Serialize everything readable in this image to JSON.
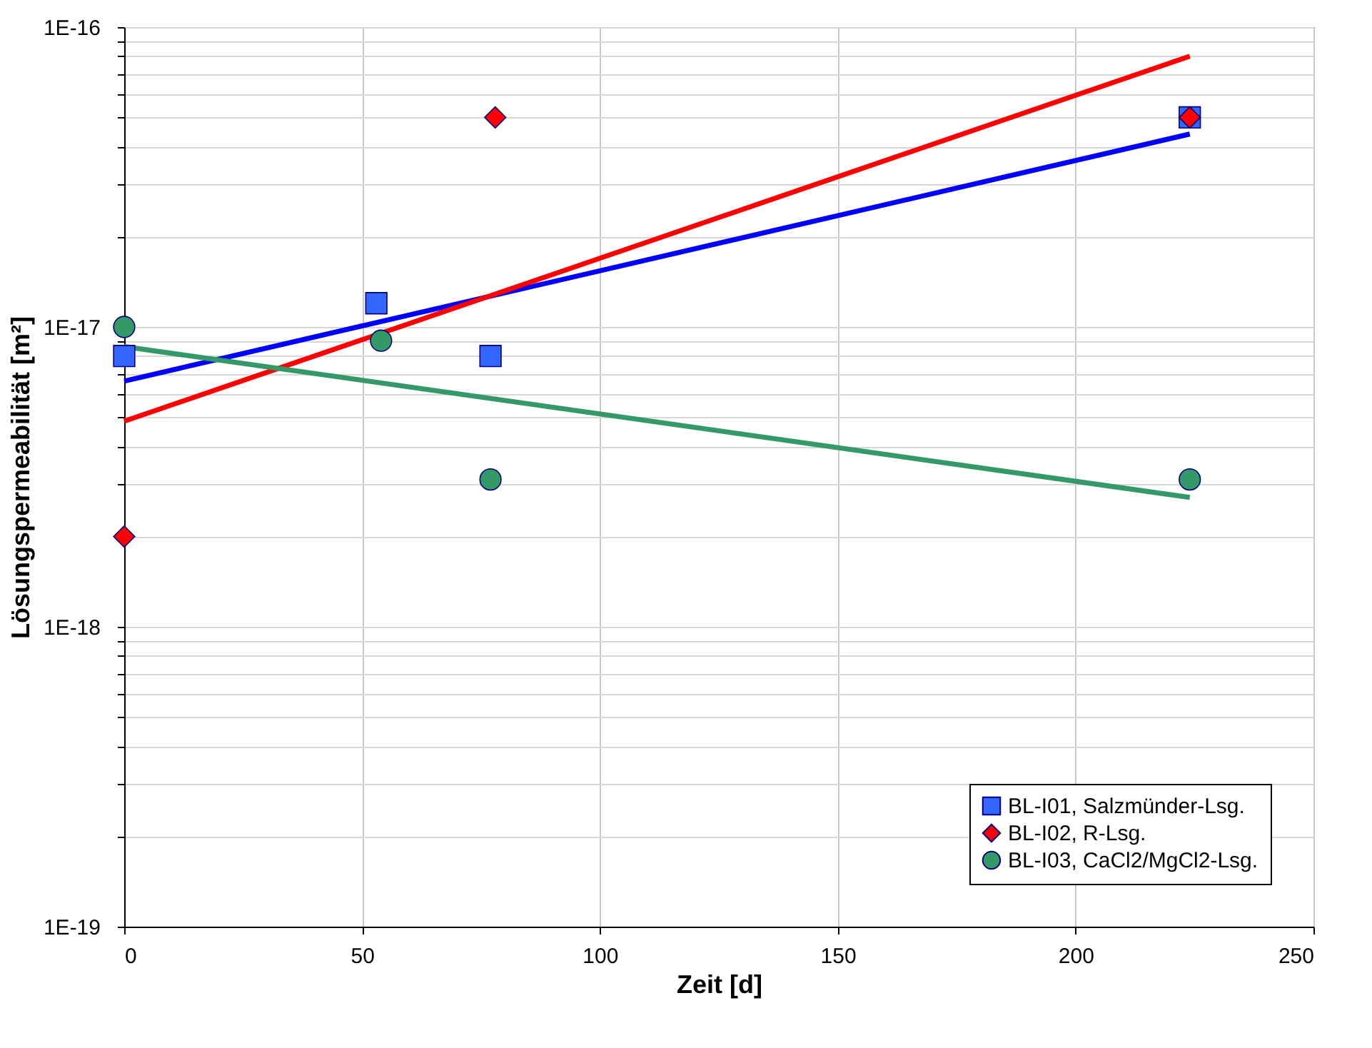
{
  "chart_data": {
    "type": "scatter",
    "xlabel": "Zeit [d]",
    "ylabel": "Lösungspermeabilität [m²]",
    "log": "y",
    "grid": true,
    "legend": "bottom right",
    "xlim": [
      0,
      250
    ],
    "xticks": [
      0,
      50,
      100,
      150,
      200,
      250
    ],
    "ylim": [
      1e-19,
      1e-16
    ],
    "yticks": [
      {
        "value": 1e-19,
        "label": "1E-19"
      },
      {
        "value": 2e-19,
        "label": null
      },
      {
        "value": 3e-19,
        "label": null
      },
      {
        "value": 4e-19,
        "label": null
      },
      {
        "value": 5e-19,
        "label": null
      },
      {
        "value": 6e-19,
        "label": null
      },
      {
        "value": 7e-19,
        "label": null
      },
      {
        "value": 8e-19,
        "label": null
      },
      {
        "value": 9e-19,
        "label": null
      },
      {
        "value": 1e-18,
        "label": "1E-18"
      },
      {
        "value": 2e-18,
        "label": null
      },
      {
        "value": 3e-18,
        "label": null
      },
      {
        "value": 4e-18,
        "label": null
      },
      {
        "value": 5e-18,
        "label": null
      },
      {
        "value": 6e-18,
        "label": null
      },
      {
        "value": 7e-18,
        "label": null
      },
      {
        "value": 8e-18,
        "label": null
      },
      {
        "value": 9e-18,
        "label": null
      },
      {
        "value": 1e-17,
        "label": "1E-17"
      },
      {
        "value": 2e-17,
        "label": null
      },
      {
        "value": 3e-17,
        "label": null
      },
      {
        "value": 4e-17,
        "label": null
      },
      {
        "value": 5e-17,
        "label": null
      },
      {
        "value": 6e-17,
        "label": null
      },
      {
        "value": 7e-17,
        "label": null
      },
      {
        "value": 8e-17,
        "label": null
      },
      {
        "value": 9e-17,
        "label": null
      },
      {
        "value": 1e-16,
        "label": "1E-16"
      }
    ],
    "series": [
      {
        "name": "BL-I01, Salzmünder-Lsg.",
        "color": "#3366ff",
        "marker": "square",
        "x": [
          0,
          53,
          77,
          224
        ],
        "values": [
          8e-18,
          1.2e-17,
          8e-18,
          5e-17
        ]
      },
      {
        "name": "BL-I02, R-Lsg.",
        "color": "#ff0000",
        "marker": "diamond",
        "x": [
          0,
          78,
          224
        ],
        "values": [
          2e-18,
          5e-17,
          5e-17
        ]
      },
      {
        "name": "BL-I03, CaCl2/MgCl2-Lsg.",
        "color": "#339966",
        "marker": "circle",
        "x": [
          0,
          54,
          77,
          224
        ],
        "values": [
          1e-17,
          9e-18,
          3.1e-18,
          3.1e-18
        ]
      },
      {
        "type": "line",
        "color": "#0000ff",
        "line_style": "solid",
        "x": [
          0,
          224
        ],
        "values": [
          6.6e-18,
          4.4e-17
        ]
      },
      {
        "type": "line",
        "color": "#ff0000",
        "line_style": "solid",
        "x": [
          0,
          224
        ],
        "values": [
          4.85e-18,
          8e-17
        ]
      },
      {
        "type": "line",
        "color": "#339966",
        "line_style": "solid",
        "x": [
          0,
          224
        ],
        "values": [
          8.6e-18,
          2.7e-18
        ]
      }
    ]
  }
}
